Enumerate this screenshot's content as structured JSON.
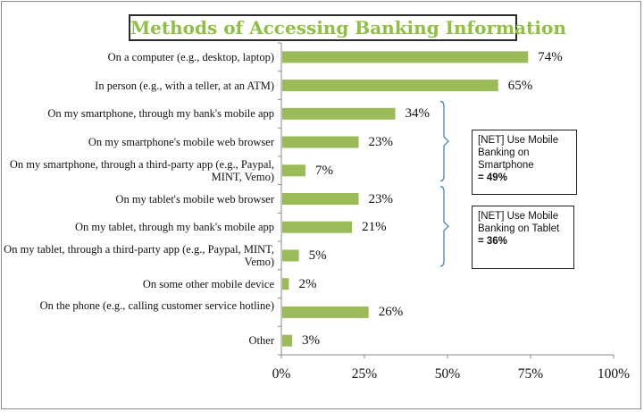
{
  "chart_data": {
    "type": "bar",
    "orientation": "horizontal",
    "title": "Methods of Accessing Banking Information",
    "categories": [
      "On a computer (e.g., desktop, laptop)",
      "In person (e.g., with a teller, at an ATM)",
      "On my smartphone, through my bank's mobile app",
      "On my smartphone's mobile web browser",
      "On my smartphone, through a third-party app (e.g., Paypal, MINT, Vemo)",
      "On my tablet's mobile web browser",
      "On my tablet, through my bank's mobile app",
      "On my tablet, through a third-party app (e.g., Paypal, MINT, Vemo)",
      "On some other mobile device",
      "On the phone (e.g., calling customer service hotline)",
      "Other"
    ],
    "values": [
      74,
      65,
      34,
      23,
      7,
      23,
      21,
      5,
      2,
      26,
      3
    ],
    "value_labels": [
      "74%",
      "65%",
      "34%",
      "23%",
      "7%",
      "23%",
      "21%",
      "5%",
      "2%",
      "26%",
      "3%"
    ],
    "xlim": [
      0,
      100
    ],
    "x_ticks": [
      "0%",
      "25%",
      "50%",
      "75%",
      "100%"
    ],
    "grid": false,
    "bar_color": "#9bbb59",
    "title_color": "#8fbf45",
    "annotations": [
      {
        "text": "[NET] Use Mobile Banking on Smartphone",
        "value": "= 49%",
        "brackets_categories": [
          2,
          4
        ]
      },
      {
        "text": "[NET] Use Mobile Banking on Tablet",
        "value": "= 36%",
        "brackets_categories": [
          5,
          7
        ]
      }
    ],
    "bracket_color": "#4f81bd"
  }
}
